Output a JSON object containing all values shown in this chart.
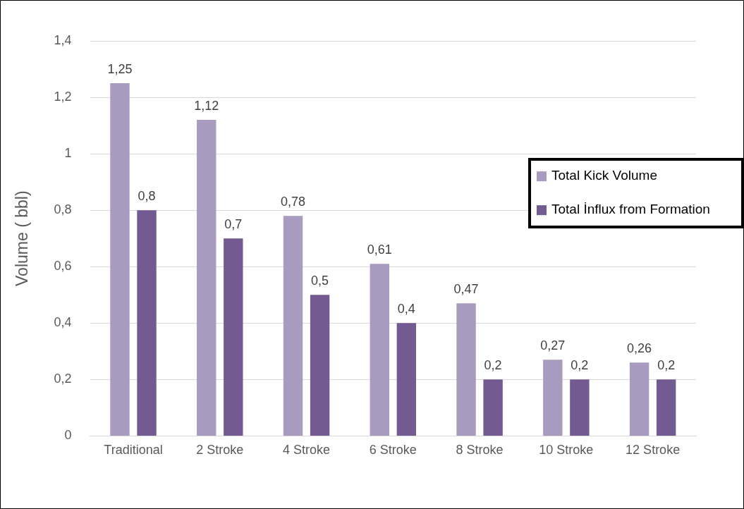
{
  "chart_data": {
    "type": "bar",
    "ylabel": "Volume ( bbl)",
    "categories": [
      "Traditional",
      "2 Stroke",
      "4 Stroke",
      "6 Stroke",
      "8 Stroke",
      "10 Stroke",
      "12 Stroke"
    ],
    "series": [
      {
        "name": "Total Kick Volume",
        "color": "#a99bbf",
        "values": [
          1.25,
          1.12,
          0.78,
          0.61,
          0.47,
          0.27,
          0.26
        ],
        "value_labels": [
          "1,25",
          "1,12",
          "0,78",
          "0,61",
          "0,47",
          "0,27",
          "0,26"
        ]
      },
      {
        "name": "Total İnflux from Formation",
        "color": "#735a91",
        "values": [
          0.8,
          0.7,
          0.5,
          0.4,
          0.2,
          0.2,
          0.2
        ],
        "value_labels": [
          "0,8",
          "0,7",
          "0,5",
          "0,4",
          "0,2",
          "0,2",
          "0,2"
        ]
      }
    ],
    "ylim": [
      0,
      1.4
    ],
    "yticks": [
      0,
      {
        "value": 0.2,
        "label": "0,2"
      },
      {
        "value": 0.4,
        "label": "0,4"
      },
      {
        "value": 0.6,
        "label": "0,6"
      },
      {
        "value": 0.8,
        "label": "0,8"
      },
      1,
      {
        "value": 1.2,
        "label": "1,2"
      },
      {
        "value": 1.4,
        "label": "1,4"
      }
    ],
    "grid": "y",
    "legend": "right"
  }
}
